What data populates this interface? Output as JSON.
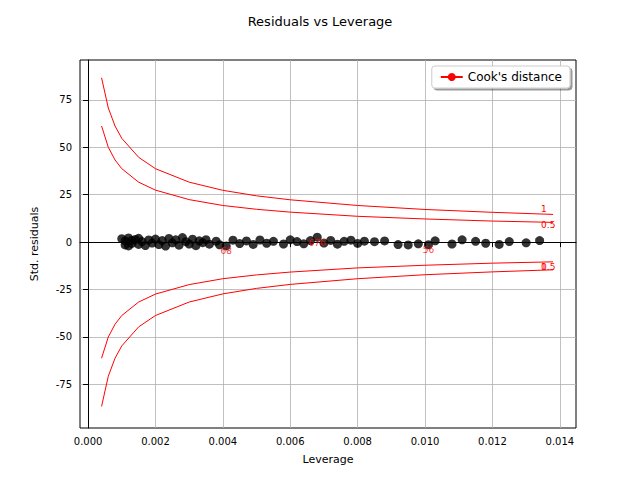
{
  "chart_data": {
    "type": "scatter",
    "title": "Residuals vs Leverage",
    "x_label": "Leverage",
    "y_label": "Std. residuals",
    "xlim": [
      -0.00024,
      0.01448
    ],
    "ylim": [
      -98,
      96
    ],
    "xticks": [
      {
        "value": 0,
        "label": "0.000"
      },
      {
        "value": 0.002,
        "label": "0.002"
      },
      {
        "value": 0.004,
        "label": "0.004"
      },
      {
        "value": 0.006,
        "label": "0.006"
      },
      {
        "value": 0.008,
        "label": "0.008"
      },
      {
        "value": 0.01,
        "label": "0.010"
      },
      {
        "value": 0.012,
        "label": "0.012"
      },
      {
        "value": 0.014,
        "label": "0.014"
      }
    ],
    "yticks": [
      -75,
      -50,
      -25,
      0,
      25,
      50,
      75
    ],
    "grid": true,
    "legend": "upper right",
    "series": [
      {
        "type": "scatter",
        "color": "black",
        "marker": "o",
        "x": [
          0.001,
          0.0011,
          0.0011,
          0.0012,
          0.0012,
          0.0013,
          0.0013,
          0.0014,
          0.0015,
          0.0015,
          0.0016,
          0.0017,
          0.0018,
          0.0019,
          0.002,
          0.0021,
          0.0022,
          0.0023,
          0.0024,
          0.0025,
          0.0026,
          0.0027,
          0.0028,
          0.0029,
          0.003,
          0.0031,
          0.0032,
          0.0033,
          0.0034,
          0.0035,
          0.0036,
          0.0038,
          0.0039,
          0.0041,
          0.0043,
          0.0045,
          0.0047,
          0.0049,
          0.0051,
          0.0053,
          0.0055,
          0.0058,
          0.006,
          0.0062,
          0.0064,
          0.0066,
          0.0068,
          0.007,
          0.0072,
          0.0074,
          0.0076,
          0.0078,
          0.008,
          0.0082,
          0.0085,
          0.0088,
          0.0092,
          0.0095,
          0.0098,
          0.0101,
          0.0103,
          0.0108,
          0.0111,
          0.0115,
          0.0118,
          0.0122,
          0.0125,
          0.013,
          0.0134
        ],
        "values": [
          1.8,
          -1.5,
          0.6,
          2.2,
          -2.0,
          0.9,
          -0.7,
          1.4,
          -1.2,
          2.0,
          0.3,
          -1.8,
          1.1,
          -0.5,
          1.6,
          -1.3,
          0.8,
          -2.1,
          1.9,
          -0.4,
          1.2,
          -1.6,
          2.4,
          0.2,
          -1.0,
          1.5,
          -1.9,
          0.7,
          -0.3,
          1.3,
          -1.1,
          0.5,
          -1.4,
          -2.0,
          1.0,
          -0.8,
          0.6,
          -1.2,
          1.1,
          -0.6,
          0.4,
          -1.0,
          1.2,
          0.3,
          -0.9,
          0.8,
          2.6,
          -0.5,
          0.9,
          -1.1,
          0.4,
          1.0,
          -0.7,
          0.5,
          0.2,
          0.6,
          -1.3,
          -1.5,
          -0.9,
          -1.4,
          0.7,
          -1.0,
          1.2,
          0.4,
          -0.6,
          -1.2,
          0.3,
          -0.4,
          0.8
        ]
      },
      {
        "type": "line",
        "name": "Cook's distance",
        "color": "red",
        "line_style": "solid",
        "label": "1",
        "x": [
          0.0004,
          0.0006,
          0.0008,
          0.001,
          0.0015,
          0.002,
          0.003,
          0.004,
          0.005,
          0.006,
          0.008,
          0.01,
          0.012,
          0.0138
        ],
        "values": [
          86.6,
          70.7,
          61.2,
          54.7,
          44.7,
          38.7,
          31.6,
          27.3,
          24.4,
          22.3,
          19.3,
          17.2,
          15.7,
          14.6
        ]
      },
      {
        "type": "line",
        "name": "Cook's distance",
        "color": "red",
        "line_style": "solid",
        "label": "0.5",
        "x": [
          0.0004,
          0.0006,
          0.0008,
          0.001,
          0.0015,
          0.002,
          0.003,
          0.004,
          0.005,
          0.006,
          0.008,
          0.01,
          0.012,
          0.0138
        ],
        "values": [
          61.2,
          50.0,
          43.3,
          38.7,
          31.6,
          27.4,
          22.4,
          19.3,
          17.3,
          15.8,
          13.6,
          12.2,
          11.1,
          10.4
        ]
      },
      {
        "type": "line",
        "name": "Cook's distance",
        "color": "red",
        "line_style": "solid",
        "label": "0.5",
        "x": [
          0.0004,
          0.0006,
          0.0008,
          0.001,
          0.0015,
          0.002,
          0.003,
          0.004,
          0.005,
          0.006,
          0.008,
          0.01,
          0.012,
          0.0138
        ],
        "values": [
          -61.2,
          -50.0,
          -43.3,
          -38.7,
          -31.6,
          -27.4,
          -22.4,
          -19.3,
          -17.3,
          -15.8,
          -13.6,
          -12.2,
          -11.1,
          -10.4
        ]
      },
      {
        "type": "line",
        "name": "Cook's distance",
        "color": "red",
        "line_style": "solid",
        "label": "1",
        "x": [
          0.0004,
          0.0006,
          0.0008,
          0.001,
          0.0015,
          0.002,
          0.003,
          0.004,
          0.005,
          0.006,
          0.008,
          0.01,
          0.012,
          0.0138
        ],
        "values": [
          -86.6,
          -70.7,
          -61.2,
          -54.7,
          -44.7,
          -38.7,
          -31.6,
          -27.3,
          -24.4,
          -22.3,
          -19.3,
          -17.2,
          -15.7,
          -14.6
        ]
      }
    ],
    "annotations": [
      {
        "text": "68",
        "x": 0.0041,
        "y": -2.0,
        "color": "red"
      },
      {
        "text": "676",
        "x": 0.0068,
        "y": 2.6,
        "color": "red"
      },
      {
        "text": "56",
        "x": 0.0101,
        "y": -1.4,
        "color": "red"
      }
    ]
  }
}
